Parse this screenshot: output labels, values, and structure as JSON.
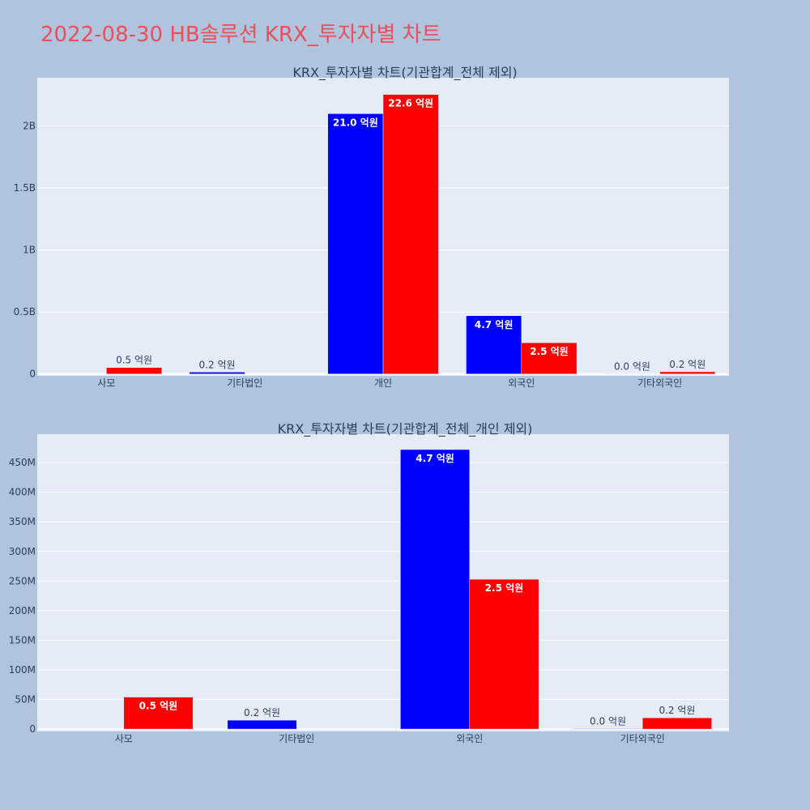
{
  "page_title": "2022-08-30 HB솔루션 KRX_투자자별 차트",
  "colors": {
    "series_1": "#0000ff",
    "series_2": "#ff0000",
    "plot_bg": "#e5ecf6",
    "page_bg": "#b0c4de",
    "title": "#e8505b"
  },
  "chart_data": [
    {
      "type": "bar",
      "title": "KRX_투자자별 차트(기관합계_전체 제외)",
      "categories": [
        "사모",
        "기타법인",
        "개인",
        "외국인",
        "기타외국인"
      ],
      "series": [
        {
          "color": "#0000ff",
          "values": [
            0,
            15000000,
            2100000000,
            470000000,
            800000
          ],
          "labels": [
            "",
            "0.2 억원",
            "21.0 억원",
            "4.7 억원",
            "0.0 억원"
          ]
        },
        {
          "color": "#ff0000",
          "values": [
            52000000,
            0,
            2255000000,
            252000000,
            18000000
          ],
          "labels": [
            "0.5 억원",
            "",
            "22.6 억원",
            "2.5 억원",
            "0.2 억원"
          ]
        }
      ],
      "ylim": [
        -15000000,
        2390000000
      ],
      "yticks": [
        0,
        500000000,
        1000000000,
        1500000000,
        2000000000
      ],
      "ytick_labels": [
        "0",
        "0.5B",
        "1B",
        "1.5B",
        "2B"
      ],
      "grid": true,
      "legend": "none"
    },
    {
      "type": "bar",
      "title": "KRX_투자자별 차트(기관합계_전체_개인 제외)",
      "categories": [
        "사모",
        "기타법인",
        "외국인",
        "기타외국인"
      ],
      "series": [
        {
          "color": "#0000ff",
          "values": [
            0,
            15000000,
            472000000,
            800000
          ],
          "labels": [
            "",
            "0.2 억원",
            "4.7 억원",
            "0.0 억원"
          ]
        },
        {
          "color": "#ff0000",
          "values": [
            54000000,
            0,
            253000000,
            19000000
          ],
          "labels": [
            "0.5 억원",
            "",
            "2.5 억원",
            "0.2 억원"
          ]
        }
      ],
      "ylim": [
        -4000000,
        498000000
      ],
      "yticks": [
        0,
        50000000,
        100000000,
        150000000,
        200000000,
        250000000,
        300000000,
        350000000,
        400000000,
        450000000
      ],
      "ytick_labels": [
        "0",
        "50M",
        "100M",
        "150M",
        "200M",
        "250M",
        "300M",
        "350M",
        "400M",
        "450M"
      ],
      "grid": true,
      "legend": "none"
    }
  ]
}
